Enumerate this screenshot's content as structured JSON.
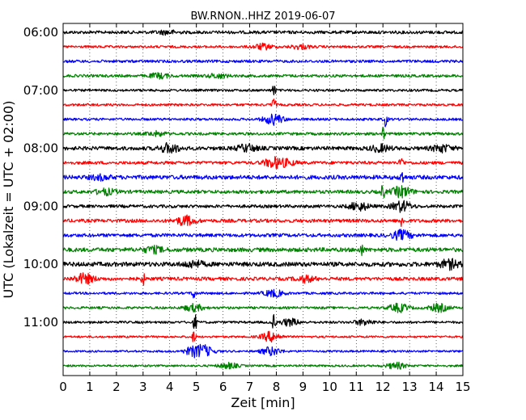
{
  "chart_data": {
    "type": "line",
    "title": "BW.RNON..HHZ 2019-06-07",
    "xlabel": "Zeit  [min]",
    "ylabel": "UTC (Lokalzeit = UTC + 02:00)",
    "xlim": [
      0,
      15
    ],
    "x_ticks": [
      0,
      1,
      2,
      3,
      4,
      5,
      6,
      7,
      8,
      9,
      10,
      11,
      12,
      13,
      14,
      15
    ],
    "y_tick_labels": [
      "06:00",
      "07:00",
      "08:00",
      "09:00",
      "10:00",
      "11:00"
    ],
    "grid": "vertical dotted",
    "trace_colors": [
      "#000000",
      "#ff0000",
      "#0000ff",
      "#008000"
    ],
    "traces": [
      {
        "start": "06:00",
        "amplitude": 0.45,
        "events": [
          {
            "x": 3.9,
            "amp": 0.5
          }
        ]
      },
      {
        "start": "06:15",
        "amplitude": 0.35,
        "events": [
          {
            "x": 7.5,
            "amp": 0.8
          },
          {
            "x": 8.9,
            "amp": 0.6
          }
        ]
      },
      {
        "start": "06:30",
        "amplitude": 0.4,
        "events": []
      },
      {
        "start": "06:45",
        "amplitude": 0.4,
        "events": [
          {
            "x": 3.6,
            "amp": 0.7
          },
          {
            "x": 5.8,
            "amp": 0.6
          }
        ]
      },
      {
        "start": "07:00",
        "amplitude": 0.35,
        "events": [
          {
            "x": 7.9,
            "amp": 1.8
          }
        ]
      },
      {
        "start": "07:15",
        "amplitude": 0.35,
        "events": [
          {
            "x": 7.9,
            "amp": 2.2
          }
        ]
      },
      {
        "start": "07:30",
        "amplitude": 0.35,
        "events": [
          {
            "x": 7.9,
            "amp": 1.5
          },
          {
            "x": 12.1,
            "amp": 2.0
          }
        ]
      },
      {
        "start": "07:45",
        "amplitude": 0.4,
        "events": [
          {
            "x": 3.5,
            "amp": 0.6
          },
          {
            "x": 12.0,
            "amp": 1.8
          }
        ]
      },
      {
        "start": "08:00",
        "amplitude": 0.55,
        "events": [
          {
            "x": 4.0,
            "amp": 1.3
          },
          {
            "x": 6.9,
            "amp": 1.0
          },
          {
            "x": 11.9,
            "amp": 0.9
          },
          {
            "x": 14.2,
            "amp": 1.0
          }
        ]
      },
      {
        "start": "08:15",
        "amplitude": 0.45,
        "events": [
          {
            "x": 7.9,
            "amp": 1.4
          },
          {
            "x": 8.4,
            "amp": 0.7
          },
          {
            "x": 12.7,
            "amp": 1.8
          }
        ]
      },
      {
        "start": "08:30",
        "amplitude": 0.6,
        "events": [
          {
            "x": 1.4,
            "amp": 0.6
          },
          {
            "x": 12.7,
            "amp": 2.2
          }
        ]
      },
      {
        "start": "08:45",
        "amplitude": 0.5,
        "events": [
          {
            "x": 1.6,
            "amp": 0.8
          },
          {
            "x": 12.0,
            "amp": 2.0
          },
          {
            "x": 12.7,
            "amp": 1.5
          }
        ]
      },
      {
        "start": "09:00",
        "amplitude": 0.45,
        "events": [
          {
            "x": 11.1,
            "amp": 1.2
          },
          {
            "x": 12.7,
            "amp": 1.5
          }
        ]
      },
      {
        "start": "09:15",
        "amplitude": 0.5,
        "events": [
          {
            "x": 4.6,
            "amp": 1.3
          },
          {
            "x": 12.7,
            "amp": 1.6
          }
        ]
      },
      {
        "start": "09:30",
        "amplitude": 0.5,
        "events": [
          {
            "x": 12.7,
            "amp": 1.3
          }
        ]
      },
      {
        "start": "09:45",
        "amplitude": 0.6,
        "events": [
          {
            "x": 3.4,
            "amp": 0.8
          },
          {
            "x": 11.2,
            "amp": 1.6
          }
        ]
      },
      {
        "start": "10:00",
        "amplitude": 0.65,
        "events": [
          {
            "x": 4.9,
            "amp": 0.9
          },
          {
            "x": 14.5,
            "amp": 1.2
          }
        ]
      },
      {
        "start": "10:15",
        "amplitude": 0.5,
        "events": [
          {
            "x": 0.8,
            "amp": 1.4
          },
          {
            "x": 3.0,
            "amp": 1.6
          },
          {
            "x": 9.1,
            "amp": 0.8
          }
        ]
      },
      {
        "start": "10:30",
        "amplitude": 0.35,
        "events": [
          {
            "x": 4.9,
            "amp": 1.6
          },
          {
            "x": 7.9,
            "amp": 1.0
          }
        ]
      },
      {
        "start": "10:45",
        "amplitude": 0.35,
        "events": [
          {
            "x": 4.9,
            "amp": 1.0
          },
          {
            "x": 12.6,
            "amp": 1.2
          },
          {
            "x": 14.1,
            "amp": 1.1
          }
        ]
      },
      {
        "start": "11:00",
        "amplitude": 0.35,
        "events": [
          {
            "x": 4.95,
            "amp": 2.2
          },
          {
            "x": 7.9,
            "amp": 2.0
          },
          {
            "x": 8.5,
            "amp": 1.0
          },
          {
            "x": 11.3,
            "amp": 0.8
          }
        ]
      },
      {
        "start": "11:15",
        "amplitude": 0.3,
        "events": [
          {
            "x": 4.9,
            "amp": 1.6
          },
          {
            "x": 7.8,
            "amp": 1.4
          }
        ]
      },
      {
        "start": "11:30",
        "amplitude": 0.3,
        "events": [
          {
            "x": 4.9,
            "amp": 1.2
          },
          {
            "x": 5.3,
            "amp": 1.4
          },
          {
            "x": 7.8,
            "amp": 1.2
          }
        ]
      },
      {
        "start": "11:45",
        "amplitude": 0.3,
        "events": [
          {
            "x": 6.2,
            "amp": 0.8
          },
          {
            "x": 12.5,
            "amp": 0.9
          }
        ]
      }
    ]
  }
}
